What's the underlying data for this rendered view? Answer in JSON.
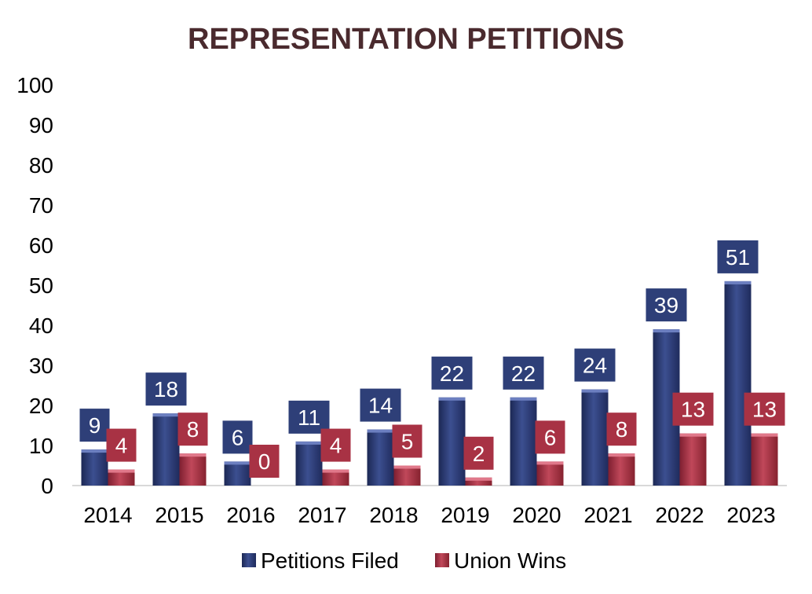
{
  "chart_data": {
    "type": "bar",
    "title": "REPRESENTATION PETITIONS",
    "xlabel": "",
    "ylabel": "",
    "categories": [
      "2014",
      "2015",
      "2016",
      "2017",
      "2018",
      "2019",
      "2020",
      "2021",
      "2022",
      "2023"
    ],
    "ylim": [
      0,
      100
    ],
    "yticks": [
      0,
      10,
      20,
      30,
      40,
      50,
      60,
      70,
      80,
      90,
      100
    ],
    "grid": false,
    "legend_position": "bottom",
    "series": [
      {
        "name": "Petitions Filed",
        "color": "#2e3f78",
        "values": [
          9,
          18,
          6,
          11,
          14,
          22,
          22,
          24,
          39,
          51
        ]
      },
      {
        "name": "Union Wins",
        "color": "#a83244",
        "values": [
          4,
          8,
          0,
          4,
          5,
          2,
          6,
          8,
          13,
          13
        ]
      }
    ]
  }
}
